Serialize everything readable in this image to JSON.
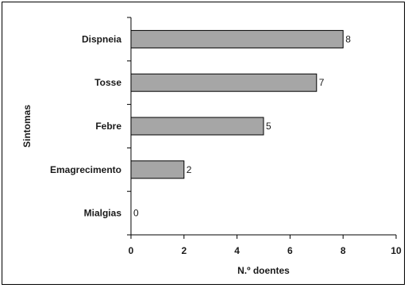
{
  "chart_data": {
    "type": "bar",
    "orientation": "horizontal",
    "categories": [
      "Dispneia",
      "Tosse",
      "Febre",
      "Emagrecimento",
      "Mialgias"
    ],
    "values": [
      8,
      7,
      5,
      2,
      0
    ],
    "data_labels": [
      "8",
      "7",
      "5",
      "2",
      "0"
    ],
    "xlabel": "N.º doentes",
    "ylabel": "Sintomas",
    "xlim": [
      0,
      10
    ],
    "x_ticks": [
      0,
      2,
      4,
      6,
      8,
      10
    ],
    "x_tick_labels": [
      "0",
      "2",
      "4",
      "6",
      "8",
      "10"
    ],
    "grid": false,
    "bar_color": "#a6a6a6",
    "bar_edge_color": "#000000"
  }
}
